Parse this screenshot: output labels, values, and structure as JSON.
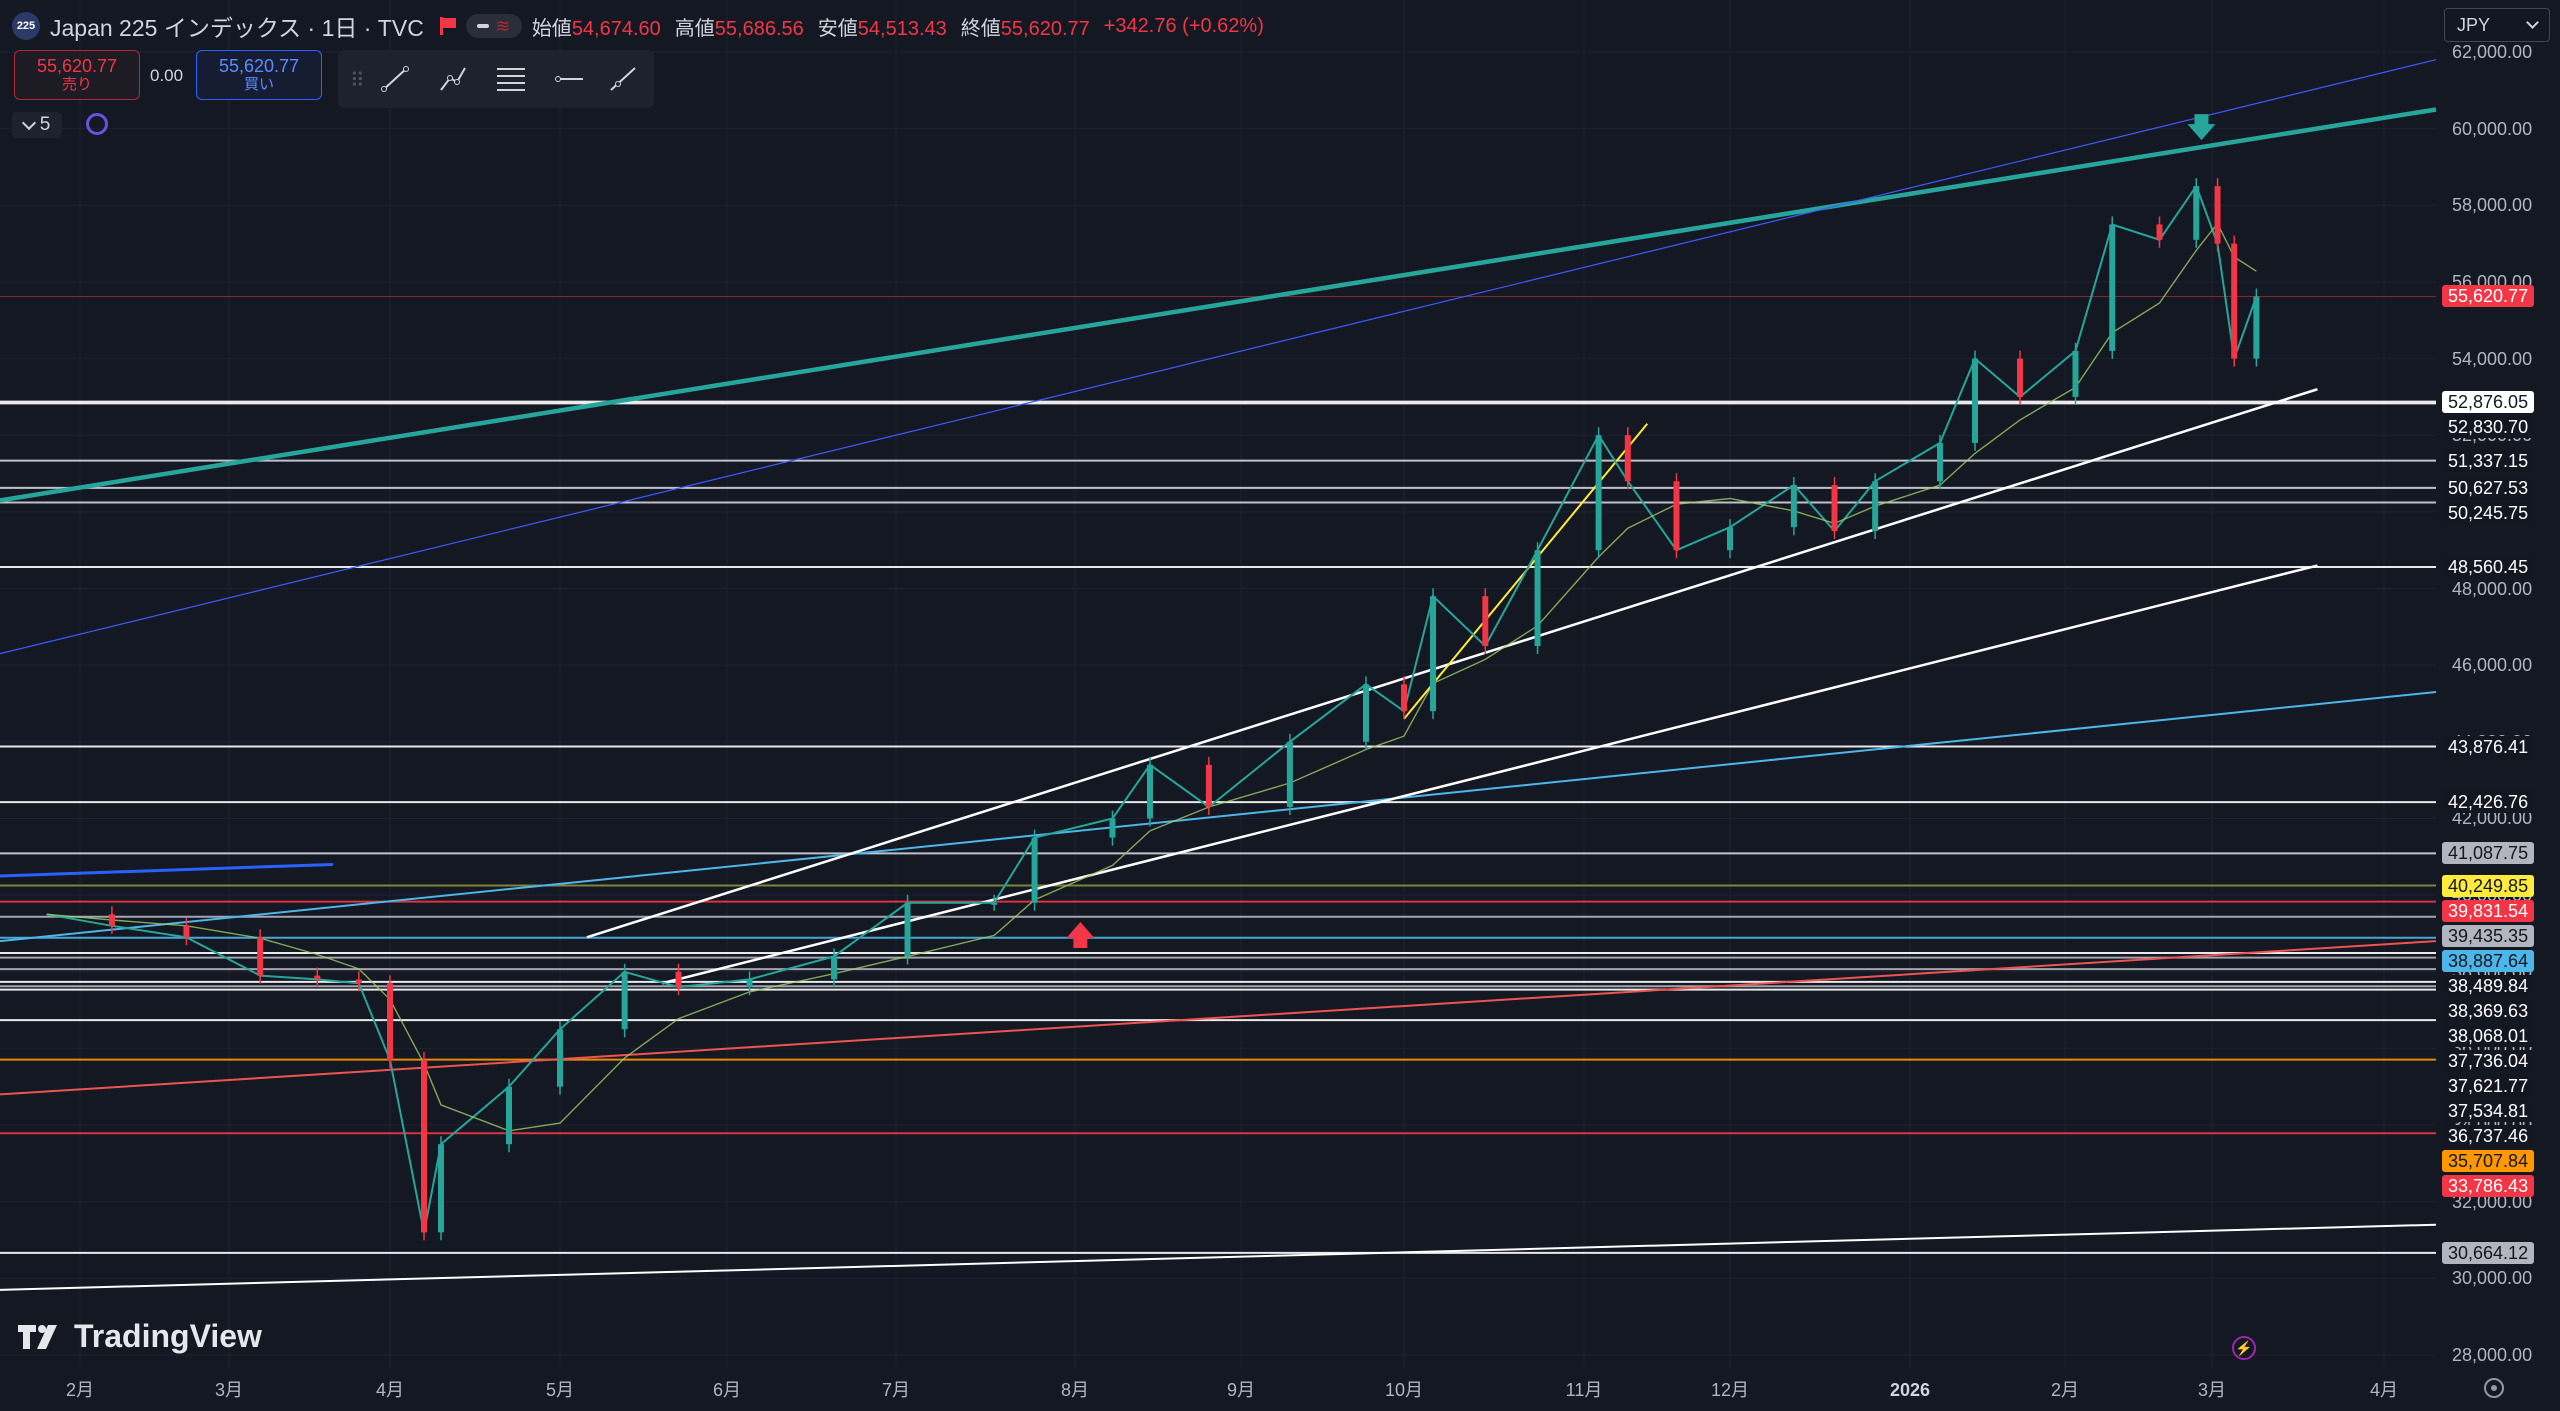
{
  "symbol": {
    "badge": "225",
    "title": "Japan 225 インデックス · 1日 · TVC",
    "open_label": "始値",
    "open": "54,674.60",
    "high_label": "高値",
    "high": "55,686.56",
    "low_label": "安値",
    "low": "54,513.43",
    "close_label": "終値",
    "close": "55,620.77",
    "change": "+342.76 (+0.62%)"
  },
  "trade": {
    "sell_price": "55,620.77",
    "sell_label": "売り",
    "spread": "0.00",
    "buy_price": "55,620.77",
    "buy_label": "買い"
  },
  "toolbar": {
    "tools": [
      "trend-line-icon",
      "path-icon",
      "parallel-channel-icon",
      "horizontal-ray-icon",
      "info-line-icon"
    ]
  },
  "indicator_count": "5",
  "currency": "JPY",
  "watermark": "TradingView",
  "chart_data": {
    "type": "candlestick",
    "title": "Japan 225 インデックス · 1日 · TVC",
    "yaxis": {
      "min": 28000,
      "max": 62000,
      "ticks": [
        "62,000.00",
        "60,000.00",
        "58,000.00",
        "56,000.00",
        "54,000.00",
        "52,000.00",
        "50,000.00",
        "48,000.00",
        "46,000.00",
        "44,000.00",
        "42,000.00",
        "40,000.00",
        "38,000.00",
        "36,000.00",
        "34,000.00",
        "32,000.00",
        "30,000.00",
        "28,000.00"
      ]
    },
    "xaxis": {
      "labels": [
        "2月",
        "3月",
        "4月",
        "5月",
        "6月",
        "7月",
        "8月",
        "9月",
        "10月",
        "11月",
        "12月",
        "2026",
        "2月",
        "3月",
        "4月"
      ]
    },
    "price_points": [
      [
        "2025-01-27",
        39500
      ],
      [
        "2025-02-07",
        39200
      ],
      [
        "2025-02-21",
        38900
      ],
      [
        "2025-03-07",
        37900
      ],
      [
        "2025-03-18",
        37800
      ],
      [
        "2025-03-26",
        37700
      ],
      [
        "2025-04-01",
        35700
      ],
      [
        "2025-04-07",
        31200
      ],
      [
        "2025-04-10",
        33500
      ],
      [
        "2025-04-22",
        35000
      ],
      [
        "2025-05-01",
        36500
      ],
      [
        "2025-05-13",
        38000
      ],
      [
        "2025-05-23",
        37600
      ],
      [
        "2025-06-05",
        37800
      ],
      [
        "2025-06-20",
        38400
      ],
      [
        "2025-07-03",
        39800
      ],
      [
        "2025-07-18",
        39800
      ],
      [
        "2025-07-25",
        41500
      ],
      [
        "2025-08-08",
        42000
      ],
      [
        "2025-08-15",
        43400
      ],
      [
        "2025-08-26",
        42300
      ],
      [
        "2025-09-10",
        44000
      ],
      [
        "2025-09-24",
        45500
      ],
      [
        "2025-10-01",
        44800
      ],
      [
        "2025-10-06",
        47800
      ],
      [
        "2025-10-15",
        46500
      ],
      [
        "2025-10-24",
        49000
      ],
      [
        "2025-11-04",
        52000
      ],
      [
        "2025-11-10",
        50800
      ],
      [
        "2025-11-20",
        49000
      ],
      [
        "2025-12-01",
        49600
      ],
      [
        "2025-12-12",
        50700
      ],
      [
        "2025-12-19",
        49500
      ],
      [
        "2025-12-26",
        50800
      ],
      [
        "2026-01-07",
        51800
      ],
      [
        "2026-01-14",
        54000
      ],
      [
        "2026-01-23",
        53000
      ],
      [
        "2026-02-03",
        54200
      ],
      [
        "2026-02-10",
        57500
      ],
      [
        "2026-02-19",
        57100
      ],
      [
        "2026-02-26",
        58500
      ],
      [
        "2026-03-02",
        57000
      ],
      [
        "2026-03-05",
        54000
      ],
      [
        "2026-03-09",
        55620.77
      ]
    ],
    "horizontal_levels": [
      {
        "value": 52876.05,
        "label": "52,876.05",
        "color": "#ffffff",
        "bg": "#ffffff",
        "fg": "#131722"
      },
      {
        "value": 52830.7,
        "label": "52,830.70",
        "color": "#ffffff",
        "bg": "#131722",
        "fg": "#ffffff"
      },
      {
        "value": 51337.15,
        "label": "51,337.15",
        "color": "#d1d4dc",
        "bg": "#131722",
        "fg": "#ffffff"
      },
      {
        "value": 50627.53,
        "label": "50,627.53",
        "color": "#d1d4dc",
        "bg": "#131722",
        "fg": "#ffffff"
      },
      {
        "value": 50245.75,
        "label": "50,245.75",
        "color": "#d1d4dc",
        "bg": "#131722",
        "fg": "#ffffff"
      },
      {
        "value": 48560.45,
        "label": "48,560.45",
        "color": "#ffffff",
        "bg": "#131722",
        "fg": "#ffffff"
      },
      {
        "value": 43876.41,
        "label": "43,876.41",
        "color": "#ffffff",
        "bg": "#131722",
        "fg": "#ffffff"
      },
      {
        "value": 42426.76,
        "label": "42,426.76",
        "color": "#ffffff",
        "bg": "#131722",
        "fg": "#ffffff"
      },
      {
        "value": 41087.75,
        "label": "41,087.75",
        "color": "#d1d4dc",
        "bg": "#b2b5be",
        "fg": "#131722"
      },
      {
        "value": 40249.85,
        "label": "40,249.85",
        "color": "#8a8f3a",
        "bg": "#ffeb3b",
        "fg": "#131722"
      },
      {
        "value": 39831.54,
        "label": "39,831.54",
        "color": "#f23645",
        "bg": "#f23645",
        "fg": "#ffffff"
      },
      {
        "value": 39435.35,
        "label": "39,435.35",
        "color": "#b2b5be",
        "bg": "#b2b5be",
        "fg": "#131722"
      },
      {
        "value": 38887.64,
        "label": "38,887.64",
        "color": "#4db6e8",
        "bg": "#4db6e8",
        "fg": "#131722"
      },
      {
        "value": 38489.84,
        "label": "38,489.84",
        "color": "#ffffff",
        "bg": "#131722",
        "fg": "#ffffff"
      },
      {
        "value": 38369.63,
        "label": "38,369.63",
        "color": "#b2b5be",
        "bg": "#131722",
        "fg": "#ffffff"
      },
      {
        "value": 38068.01,
        "label": "38,068.01",
        "color": "#b2b5be",
        "bg": "#131722",
        "fg": "#ffffff"
      },
      {
        "value": 37736.04,
        "label": "37,736.04",
        "color": "#ffffff",
        "bg": "#131722",
        "fg": "#ffffff"
      },
      {
        "value": 37621.77,
        "label": "37,621.77",
        "color": "#b2b5be",
        "bg": "#131722",
        "fg": "#ffffff"
      },
      {
        "value": 37534.81,
        "label": "37,534.81",
        "color": "#ffffff",
        "bg": "#131722",
        "fg": "#ffffff"
      },
      {
        "value": 36737.46,
        "label": "36,737.46",
        "color": "#ffffff",
        "bg": "#131722",
        "fg": "#ffffff"
      },
      {
        "value": 35707.84,
        "label": "35,707.84",
        "color": "#ff9800",
        "bg": "#ff9800",
        "fg": "#131722"
      },
      {
        "value": 33786.43,
        "label": "33,786.43",
        "color": "#f23645",
        "bg": "#f23645",
        "fg": "#ffffff"
      },
      {
        "value": 30664.12,
        "label": "30,664.12",
        "color": "#ffffff",
        "bg": "#b2b5be",
        "fg": "#131722"
      }
    ],
    "current_price": {
      "value": 55620.77,
      "label": "55,620.77",
      "color": "#f23645"
    },
    "trend_lines": [
      {
        "color": "#26a69a",
        "width": 4.5,
        "from": [
          "2025-01-20",
          50300
        ],
        "to": [
          "2026-04-14",
          60500
        ]
      },
      {
        "color": "#3d5afe",
        "width": 1.2,
        "from": [
          "2025-01-20",
          46300
        ],
        "to": [
          "2026-04-14",
          61800
        ]
      },
      {
        "color": "#4db6e8",
        "width": 2,
        "from": [
          "2025-01-20",
          38800
        ],
        "to": [
          "2026-04-14",
          45300
        ]
      },
      {
        "color": "#ef5350",
        "width": 2,
        "from": [
          "2025-01-20",
          34800
        ],
        "to": [
          "2026-04-14",
          38800
        ]
      },
      {
        "color": "#ffffff",
        "width": 2,
        "from": [
          "2025-01-20",
          29700
        ],
        "to": [
          "2026-04-14",
          31400
        ]
      },
      {
        "color": "#2962ff",
        "width": 3,
        "from": [
          "2025-01-20",
          40500
        ],
        "to": [
          "2025-03-21",
          40800
        ]
      },
      {
        "color": "#ffffff",
        "width": 2.5,
        "from": [
          "2025-05-06",
          38900
        ],
        "to": [
          "2026-03-20",
          53200
        ]
      },
      {
        "color": "#ffffff",
        "width": 2.5,
        "from": [
          "2025-05-20",
          37700
        ],
        "to": [
          "2026-03-20",
          48600
        ]
      },
      {
        "color": "#ffeb3b",
        "width": 2,
        "from": [
          "2025-10-01",
          44600
        ],
        "to": [
          "2025-11-14",
          52300
        ]
      }
    ],
    "annotations": [
      {
        "type": "arrow-down",
        "color": "#26a69a",
        "at": [
          "2026-02-27",
          59700
        ]
      },
      {
        "type": "arrow-up",
        "color": "#f23645",
        "at": [
          "2025-08-02",
          39300
        ]
      }
    ]
  }
}
